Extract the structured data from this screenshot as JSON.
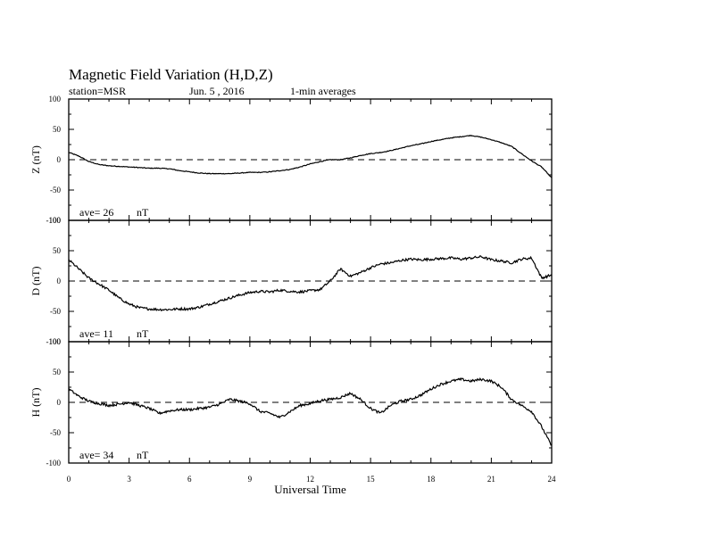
{
  "header": {
    "title": "Magnetic Field Variation (H,D,Z)",
    "station": "station=MSR",
    "date": "Jun. 5  , 2016",
    "averaging": "1-min averages"
  },
  "chart_data": [
    {
      "type": "line",
      "component": "Z",
      "ylabel": "Z (nT)",
      "ylim": [
        -100,
        100
      ],
      "yticks": [
        -100,
        -50,
        0,
        50,
        100
      ],
      "zero_line": "dashed",
      "ave_label": "ave= 26",
      "ave_unit": "nT",
      "x": [
        0,
        0.5,
        1,
        1.5,
        2,
        2.5,
        3,
        3.5,
        4,
        4.5,
        5,
        5.5,
        6,
        6.5,
        7,
        7.5,
        8,
        8.5,
        9,
        9.5,
        10,
        10.5,
        11,
        11.5,
        12,
        12.5,
        13,
        13.5,
        14,
        14.5,
        15,
        15.5,
        16,
        16.5,
        17,
        17.5,
        18,
        18.5,
        19,
        19.5,
        20,
        20.5,
        21,
        21.5,
        22,
        22.5,
        23,
        23.5,
        24
      ],
      "y": [
        12,
        6,
        -3,
        -8,
        -10,
        -11,
        -12,
        -13,
        -14,
        -14,
        -15,
        -18,
        -20,
        -22,
        -23,
        -23,
        -23,
        -22,
        -21,
        -21,
        -20,
        -18,
        -16,
        -12,
        -7,
        -3,
        0,
        0,
        3,
        7,
        10,
        12,
        15,
        19,
        23,
        26,
        30,
        33,
        36,
        38,
        40,
        37,
        33,
        28,
        22,
        10,
        -2,
        -12,
        -30
      ]
    },
    {
      "type": "line",
      "component": "D",
      "ylabel": "D (nT)",
      "ylim": [
        -100,
        100
      ],
      "yticks": [
        -100,
        -50,
        0,
        50,
        100
      ],
      "zero_line": "dashed",
      "ave_label": "ave= 11",
      "ave_unit": "nT",
      "x": [
        0,
        0.5,
        1,
        1.5,
        2,
        2.5,
        3,
        3.5,
        4,
        4.5,
        5,
        5.5,
        6,
        6.5,
        7,
        7.5,
        8,
        8.5,
        9,
        9.5,
        10,
        10.5,
        11,
        11.5,
        12,
        12.5,
        13,
        13.5,
        14,
        14.5,
        15,
        15.5,
        16,
        16.5,
        17,
        17.5,
        18,
        18.5,
        19,
        19.5,
        20,
        20.5,
        21,
        21.5,
        22,
        22.5,
        23,
        23.5,
        24
      ],
      "y": [
        35,
        20,
        5,
        -5,
        -15,
        -28,
        -38,
        -44,
        -46,
        -47,
        -47,
        -46,
        -46,
        -43,
        -38,
        -33,
        -28,
        -23,
        -19,
        -17,
        -18,
        -15,
        -17,
        -18,
        -16,
        -14,
        0,
        20,
        8,
        14,
        22,
        28,
        30,
        34,
        36,
        35,
        36,
        37,
        38,
        36,
        38,
        40,
        35,
        33,
        30,
        36,
        38,
        5,
        10
      ],
      "noise": 4
    },
    {
      "type": "line",
      "component": "H",
      "ylabel": "H (nT)",
      "ylim": [
        -100,
        100
      ],
      "yticks": [
        -100,
        -50,
        0,
        50,
        100
      ],
      "zero_line": "dashed",
      "ave_label": "ave= 34",
      "ave_unit": "nT",
      "x": [
        0,
        0.5,
        1,
        1.5,
        2,
        2.5,
        3,
        3.5,
        4,
        4.5,
        5,
        5.5,
        6,
        6.5,
        7,
        7.5,
        8,
        8.5,
        9,
        9.5,
        10,
        10.5,
        11,
        11.5,
        12,
        12.5,
        13,
        13.5,
        14,
        14.5,
        15,
        15.5,
        16,
        16.5,
        17,
        17.5,
        18,
        18.5,
        19,
        19.5,
        20,
        20.5,
        21,
        21.5,
        22,
        22.5,
        23,
        23.5,
        24
      ],
      "y": [
        22,
        10,
        2,
        -2,
        -5,
        -3,
        0,
        -5,
        -10,
        -18,
        -14,
        -12,
        -12,
        -10,
        -8,
        -3,
        5,
        2,
        -2,
        -15,
        -18,
        -25,
        -15,
        -5,
        -2,
        3,
        5,
        8,
        15,
        5,
        -10,
        -18,
        -5,
        2,
        5,
        12,
        22,
        30,
        35,
        38,
        35,
        38,
        35,
        25,
        5,
        -5,
        -15,
        -40,
        -72
      ],
      "noise": 4
    }
  ],
  "x_axis": {
    "label": "Universal Time",
    "xlim": [
      0,
      24
    ],
    "ticks": [
      0,
      3,
      6,
      9,
      12,
      15,
      18,
      21,
      24
    ]
  }
}
